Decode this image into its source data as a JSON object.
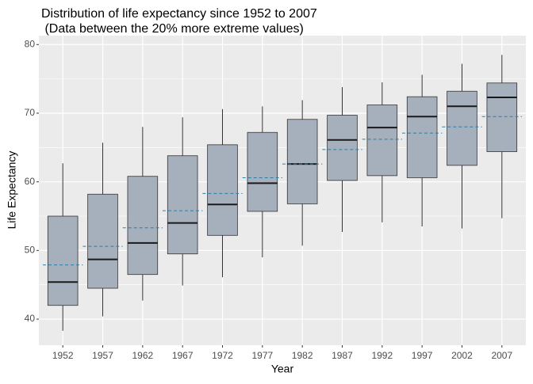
{
  "chart_data": {
    "type": "boxplot",
    "title": [
      "Distribution of life expectancy since 1952 to 2007",
      " (Data between the 20% more extreme values)"
    ],
    "x_label": "Year",
    "y_label": "Life Expectancy",
    "categories": [
      "1952",
      "1957",
      "1962",
      "1967",
      "1972",
      "1977",
      "1982",
      "1987",
      "1992",
      "1997",
      "2002",
      "2007"
    ],
    "low": [
      38.3,
      40.4,
      42.7,
      44.9,
      46.1,
      49.0,
      50.7,
      52.7,
      54.1,
      53.5,
      53.2,
      54.7
    ],
    "q1": [
      42.0,
      44.5,
      46.5,
      49.5,
      52.2,
      55.7,
      56.8,
      60.2,
      60.9,
      60.6,
      62.4,
      64.4
    ],
    "median": [
      45.4,
      48.7,
      51.1,
      54.0,
      56.7,
      59.8,
      62.6,
      66.1,
      67.9,
      69.5,
      71.0,
      72.3
    ],
    "q3": [
      55.0,
      58.2,
      60.8,
      63.8,
      65.4,
      67.2,
      69.1,
      69.7,
      71.2,
      72.4,
      73.2,
      74.4
    ],
    "high": [
      62.7,
      65.7,
      68.0,
      69.4,
      70.6,
      71.0,
      71.9,
      73.8,
      74.5,
      75.6,
      77.2,
      78.5
    ],
    "mean": [
      47.9,
      50.6,
      53.3,
      55.8,
      58.3,
      60.6,
      62.6,
      64.7,
      66.2,
      67.1,
      68.0,
      69.5
    ],
    "box_color": "#a6afbc",
    "mean_color": "#2b7fa6",
    "ylim": [
      36.2,
      81.3
    ],
    "yticks": [
      40,
      50,
      60,
      70,
      80
    ],
    "grid": true
  }
}
